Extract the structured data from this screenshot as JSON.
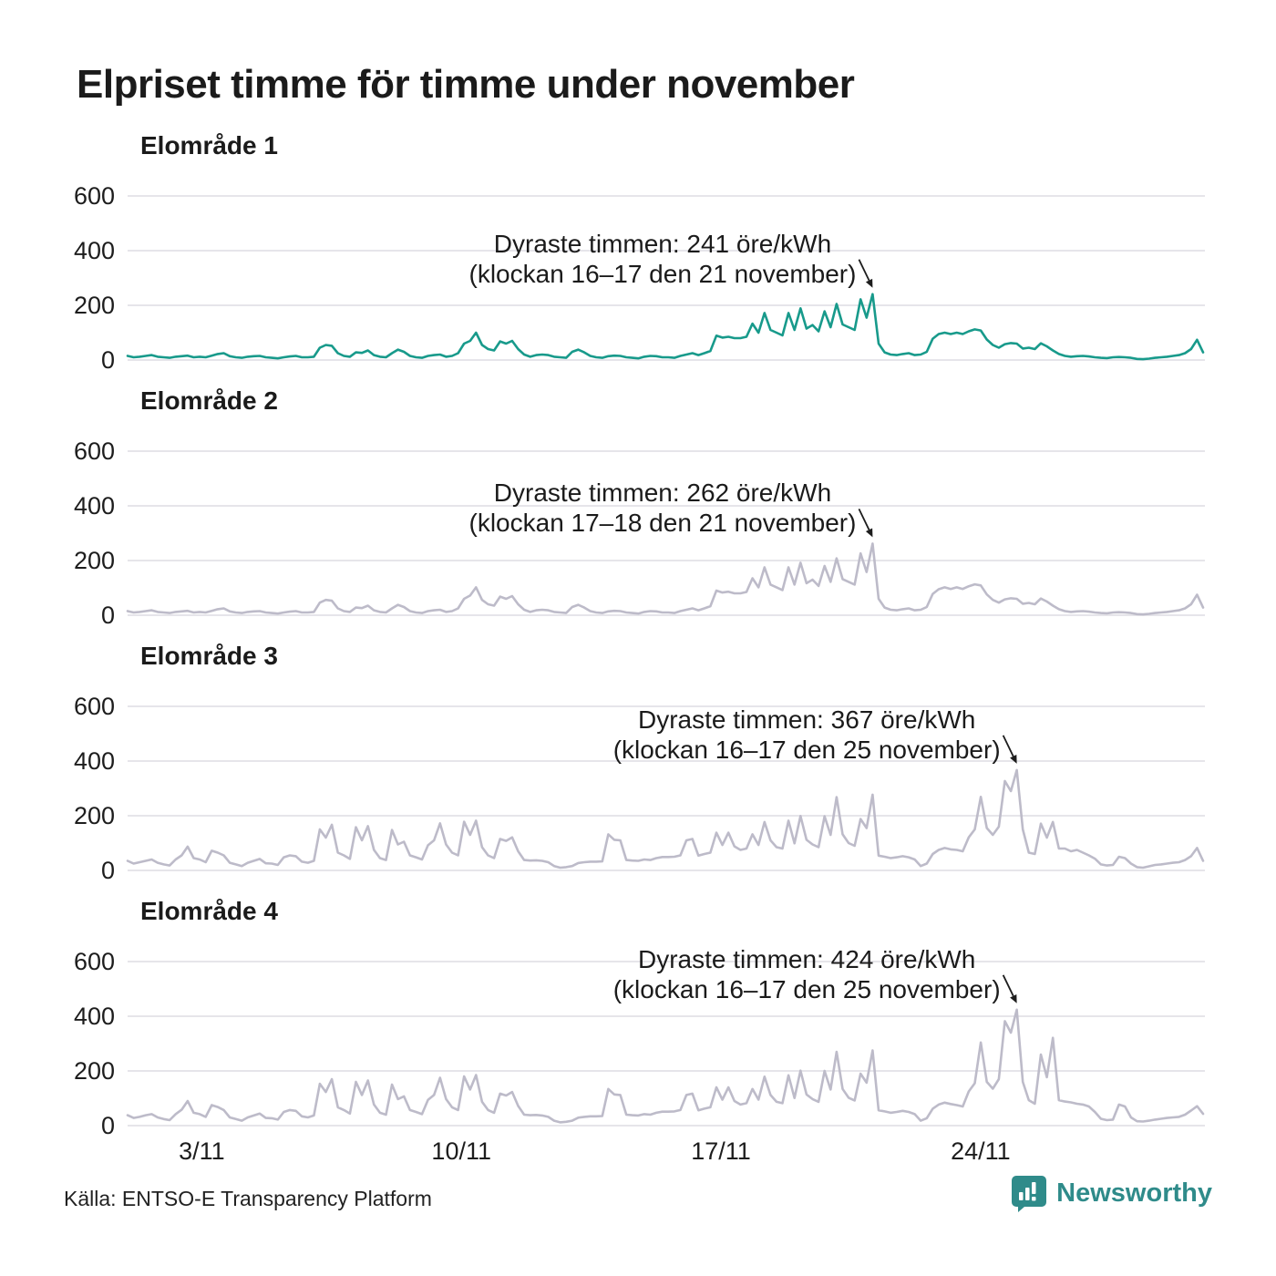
{
  "title": "Elpriset timme för timme under november",
  "source": "Källa: ENTSO-E Transparency Platform",
  "unit": "öre/kWh",
  "branding": {
    "name": "Newsworthy",
    "color": "#2f8b8a",
    "icon": "bar-chart-speech-bubble"
  },
  "colors": {
    "highlight_line": "#189a8b",
    "muted_line": "#bdbbc9",
    "grid": "#e6e5ea",
    "text": "#1d1d1d"
  },
  "axis": {
    "y_ticks": [
      600,
      400,
      200,
      0
    ],
    "ylim": [
      0,
      700
    ],
    "x_ticks": [
      {
        "label": "3/11",
        "day": 3
      },
      {
        "label": "10/11",
        "day": 10
      },
      {
        "label": "17/11",
        "day": 17
      },
      {
        "label": "24/11",
        "day": 24
      }
    ],
    "x_range_days": [
      1,
      30
    ]
  },
  "chart_data": [
    {
      "type": "line",
      "title": "Elområde 1",
      "color": "#189a8b",
      "sampling_hours": 4,
      "annotation": {
        "text_line1": "Dyraste timmen: 241 öre/kWh",
        "text_line2": "(klockan 16–17 den 21 november)",
        "peak_value": 241,
        "peak_day": 21,
        "peak_hours": "16–17"
      },
      "values": [
        15,
        10,
        12,
        15,
        18,
        12,
        10,
        8,
        12,
        14,
        16,
        10,
        12,
        10,
        16,
        22,
        25,
        14,
        10,
        8,
        12,
        14,
        15,
        10,
        8,
        6,
        10,
        13,
        15,
        10,
        10,
        12,
        45,
        55,
        52,
        25,
        15,
        12,
        28,
        26,
        35,
        18,
        12,
        10,
        25,
        38,
        30,
        15,
        10,
        8,
        15,
        18,
        20,
        12,
        15,
        25,
        60,
        70,
        100,
        55,
        40,
        35,
        68,
        60,
        70,
        40,
        20,
        12,
        18,
        20,
        18,
        12,
        10,
        8,
        30,
        38,
        28,
        15,
        10,
        8,
        14,
        16,
        15,
        10,
        8,
        6,
        12,
        15,
        14,
        10,
        10,
        8,
        15,
        20,
        25,
        18,
        25,
        33,
        89,
        82,
        85,
        80,
        80,
        85,
        133,
        100,
        172,
        110,
        100,
        90,
        172,
        110,
        189,
        115,
        128,
        105,
        178,
        120,
        205,
        130,
        120,
        110,
        222,
        155,
        241,
        60,
        28,
        20,
        18,
        22,
        25,
        18,
        20,
        30,
        78,
        95,
        100,
        95,
        100,
        95,
        105,
        112,
        108,
        75,
        55,
        45,
        58,
        62,
        60,
        42,
        45,
        40,
        61,
        50,
        35,
        22,
        15,
        12,
        14,
        15,
        13,
        10,
        8,
        7,
        10,
        11,
        10,
        8,
        4,
        3,
        5,
        8,
        10,
        12,
        15,
        18,
        25,
        40,
        74,
        28
      ]
    },
    {
      "type": "line",
      "title": "Elområde 2",
      "color": "#bdbbc9",
      "sampling_hours": 4,
      "annotation": {
        "text_line1": "Dyraste timmen: 262 öre/kWh",
        "text_line2": "(klockan 17–18 den 21 november)",
        "peak_value": 262,
        "peak_day": 21,
        "peak_hours": "17–18"
      },
      "values": [
        15,
        10,
        12,
        15,
        18,
        12,
        10,
        8,
        12,
        14,
        16,
        10,
        12,
        10,
        16,
        22,
        25,
        14,
        10,
        8,
        12,
        14,
        15,
        10,
        8,
        6,
        10,
        13,
        15,
        10,
        10,
        12,
        46,
        56,
        53,
        25,
        15,
        12,
        28,
        26,
        35,
        18,
        12,
        10,
        25,
        38,
        30,
        15,
        10,
        8,
        15,
        18,
        20,
        12,
        15,
        25,
        60,
        72,
        102,
        56,
        40,
        35,
        68,
        60,
        70,
        40,
        20,
        12,
        18,
        20,
        18,
        12,
        10,
        8,
        30,
        38,
        28,
        15,
        10,
        8,
        14,
        16,
        15,
        10,
        8,
        6,
        12,
        15,
        14,
        10,
        10,
        8,
        15,
        20,
        25,
        18,
        25,
        33,
        90,
        83,
        86,
        80,
        80,
        85,
        135,
        102,
        175,
        112,
        102,
        92,
        175,
        112,
        192,
        117,
        130,
        107,
        180,
        122,
        208,
        132,
        122,
        112,
        226,
        158,
        262,
        60,
        28,
        20,
        18,
        22,
        25,
        18,
        20,
        30,
        78,
        95,
        102,
        96,
        102,
        96,
        106,
        113,
        109,
        76,
        56,
        46,
        58,
        62,
        60,
        42,
        45,
        40,
        61,
        50,
        35,
        22,
        15,
        12,
        14,
        15,
        13,
        10,
        8,
        7,
        10,
        11,
        10,
        8,
        4,
        3,
        5,
        8,
        10,
        12,
        15,
        18,
        25,
        40,
        75,
        28
      ]
    },
    {
      "type": "line",
      "title": "Elområde 3",
      "color": "#bdbbc9",
      "sampling_hours": 4,
      "annotation": {
        "text_line1": "Dyraste timmen: 367 öre/kWh",
        "text_line2": "(klockan 16–17 den 25 november)",
        "peak_value": 367,
        "peak_day": 25,
        "peak_hours": "16–17"
      },
      "values": [
        35,
        25,
        30,
        35,
        40,
        28,
        22,
        18,
        40,
        55,
        87,
        45,
        40,
        30,
        72,
        65,
        55,
        28,
        22,
        16,
        28,
        35,
        42,
        26,
        25,
        20,
        48,
        55,
        52,
        32,
        28,
        35,
        150,
        120,
        167,
        65,
        55,
        42,
        158,
        110,
        162,
        75,
        45,
        38,
        148,
        95,
        105,
        55,
        48,
        40,
        92,
        110,
        172,
        95,
        65,
        55,
        178,
        130,
        182,
        85,
        55,
        45,
        115,
        108,
        121,
        70,
        38,
        36,
        37,
        35,
        30,
        16,
        10,
        12,
        16,
        27,
        30,
        32,
        32,
        33,
        132,
        112,
        110,
        38,
        36,
        35,
        40,
        38,
        45,
        49,
        49,
        50,
        55,
        110,
        115,
        54,
        60,
        65,
        138,
        93,
        138,
        88,
        75,
        80,
        132,
        93,
        177,
        110,
        85,
        80,
        182,
        99,
        199,
        112,
        95,
        85,
        198,
        130,
        268,
        132,
        100,
        90,
        188,
        155,
        277,
        54,
        50,
        45,
        48,
        52,
        48,
        40,
        16,
        25,
        60,
        75,
        82,
        77,
        75,
        70,
        121,
        150,
        269,
        155,
        130,
        160,
        327,
        290,
        367,
        150,
        65,
        60,
        171,
        120,
        177,
        80,
        80,
        70,
        75,
        65,
        55,
        43,
        22,
        18,
        20,
        50,
        45,
        25,
        12,
        10,
        15,
        20,
        22,
        25,
        28,
        30,
        38,
        52,
        82,
        35
      ]
    },
    {
      "type": "line",
      "title": "Elområde 4",
      "color": "#bdbbc9",
      "sampling_hours": 4,
      "annotation": {
        "text_line1": "Dyraste timmen: 424 öre/kWh",
        "text_line2": "(klockan 16–17 den 25 november)",
        "peak_value": 424,
        "peak_day": 25,
        "peak_hours": "16–17"
      },
      "values": [
        38,
        28,
        32,
        38,
        42,
        30,
        24,
        20,
        42,
        58,
        90,
        47,
        42,
        32,
        75,
        68,
        57,
        30,
        24,
        18,
        30,
        37,
        44,
        28,
        27,
        22,
        50,
        57,
        54,
        34,
        30,
        37,
        153,
        123,
        170,
        67,
        57,
        44,
        160,
        112,
        165,
        77,
        47,
        40,
        150,
        97,
        107,
        57,
        50,
        42,
        94,
        112,
        175,
        97,
        67,
        57,
        180,
        132,
        185,
        87,
        57,
        47,
        117,
        110,
        123,
        72,
        40,
        38,
        39,
        37,
        32,
        18,
        12,
        14,
        18,
        29,
        32,
        34,
        34,
        35,
        134,
        114,
        112,
        40,
        38,
        37,
        42,
        40,
        47,
        51,
        51,
        52,
        57,
        112,
        117,
        56,
        62,
        67,
        140,
        95,
        140,
        90,
        77,
        82,
        134,
        95,
        179,
        112,
        87,
        82,
        184,
        101,
        201,
        114,
        97,
        87,
        200,
        132,
        270,
        134,
        102,
        92,
        190,
        157,
        275,
        56,
        52,
        47,
        50,
        54,
        50,
        42,
        18,
        27,
        62,
        77,
        84,
        79,
        75,
        70,
        125,
        155,
        304,
        160,
        135,
        170,
        382,
        340,
        424,
        160,
        93,
        80,
        260,
        177,
        321,
        93,
        88,
        85,
        80,
        77,
        70,
        50,
        25,
        20,
        22,
        77,
        70,
        30,
        16,
        15,
        18,
        22,
        25,
        28,
        30,
        32,
        40,
        55,
        71,
        43
      ]
    }
  ]
}
